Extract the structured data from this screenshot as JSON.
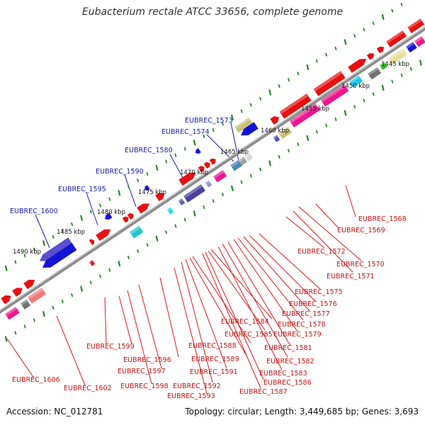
{
  "title": "Eubacterium rectale ATCC 33656, complete genome",
  "accession": "Accession: NC_012781",
  "summary": "Topology: circular; Length: 3,449,685 bp; Genes: 3,693",
  "colors": {
    "backbone": "#8a8a8a",
    "scale_ticks": "#1f8a1f",
    "top_leader": "#1a1aa6",
    "bottom_leader": "#e01818",
    "forward_gene": "#e81010",
    "reverse_gene": "#1414d8"
  },
  "scale_labels": [
    "1490 kbp",
    "1485 kbp",
    "1480 kbp",
    "1475 kbp",
    "1470 kbp",
    "1465 kbp",
    "1460 kbp",
    "1455 kbp",
    "1450 kbp",
    "1445 kbp"
  ],
  "top_labels": [
    "EUBREC_1573",
    "EUBREC_1574",
    "EUBREC_1580",
    "EUBREC_1590",
    "EUBREC_1595",
    "EUBREC_1600"
  ],
  "bottom_labels": [
    "EUBREC_1568",
    "EUBREC_1569",
    "EUBREC_1570",
    "EUBREC_1571",
    "EUBREC_1572",
    "EUBREC_1575",
    "EUBREC_1576",
    "EUBREC_1577",
    "EUBREC_1578",
    "EUBREC_1579",
    "EUBREC_1581",
    "EUBREC_1582",
    "EUBREC_1583",
    "EUBREC_1584",
    "EUBREC_1585",
    "EUBREC_1586",
    "EUBREC_1587",
    "EUBREC_1588",
    "EUBREC_1589",
    "EUBREC_1591",
    "EUBREC_1592",
    "EUBREC_1593",
    "EUBREC_1596",
    "EUBREC_1597",
    "EUBREC_1598",
    "EUBREC_1599",
    "EUBREC_1602",
    "EUBREC_1606"
  ]
}
